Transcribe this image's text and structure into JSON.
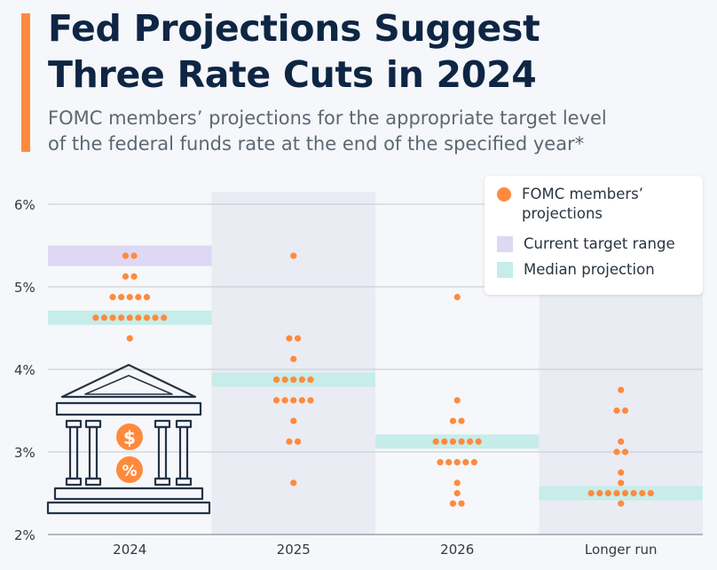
{
  "title_line1": "Fed Projections Suggest",
  "title_line2": "Three Rate Cuts in 2024",
  "subtitle_line1": "FOMC members’ projections for the appropriate target level",
  "subtitle_line2": "of the federal funds rate at the end of the specified year*",
  "legend": {
    "projections": "FOMC members’ projections",
    "current_range": "Current target range",
    "median": "Median projection"
  },
  "colors": {
    "dot": "#ff8a3d",
    "current_range": "#ded8f4",
    "median": "#c6ede9",
    "alt_band": "#e9ecf3",
    "title": "#0e2544",
    "accent": "#ff8a3d"
  },
  "icon": "federal-reserve-building-icon",
  "chart_data": {
    "type": "scatter",
    "categories": [
      "2024",
      "2025",
      "2026",
      "Longer run"
    ],
    "y_ticks": [
      "2%",
      "3%",
      "4%",
      "5%",
      "6%"
    ],
    "ylim": [
      2,
      6
    ],
    "current_target_range": {
      "category": "2024",
      "low": 5.25,
      "high": 5.5
    },
    "median": [
      4.625,
      3.875,
      3.125,
      2.5
    ],
    "projections": [
      {
        "category": "2024",
        "values": [
          5.375,
          5.375,
          5.125,
          5.125,
          4.875,
          4.875,
          4.875,
          4.875,
          4.875,
          4.625,
          4.625,
          4.625,
          4.625,
          4.625,
          4.625,
          4.625,
          4.625,
          4.625,
          4.375
        ]
      },
      {
        "category": "2025",
        "values": [
          5.375,
          4.375,
          4.375,
          4.125,
          3.875,
          3.875,
          3.875,
          3.875,
          3.875,
          3.625,
          3.625,
          3.625,
          3.625,
          3.625,
          3.375,
          3.125,
          3.125,
          2.625
        ]
      },
      {
        "category": "2026",
        "values": [
          4.875,
          3.625,
          3.375,
          3.375,
          3.125,
          3.125,
          3.125,
          3.125,
          3.125,
          3.125,
          2.875,
          2.875,
          2.875,
          2.875,
          2.875,
          2.625,
          2.5,
          2.375,
          2.375
        ]
      },
      {
        "category": "Longer run",
        "values": [
          3.75,
          3.5,
          3.5,
          3.125,
          3.0,
          3.0,
          2.75,
          2.625,
          2.5,
          2.5,
          2.5,
          2.5,
          2.5,
          2.5,
          2.5,
          2.5,
          2.375
        ]
      }
    ]
  }
}
